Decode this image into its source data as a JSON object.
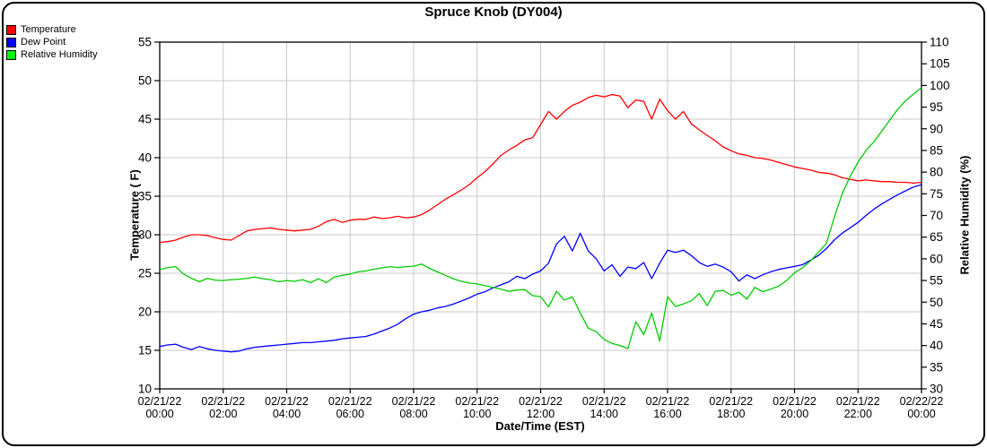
{
  "title": "Spruce Knob (DY004)",
  "legend": {
    "items": [
      {
        "label": "Temperature",
        "color": "#ff0000"
      },
      {
        "label": "Dew Point",
        "color": "#0000ff"
      },
      {
        "label": "Relative Humidity",
        "color": "#00ff00"
      }
    ]
  },
  "chart_data": {
    "type": "line",
    "title": "Spruce Knob (DY004)",
    "xlabel": "Date/Time (EST)",
    "ylabel_left": "Temperature ( F)",
    "ylabel_right": "Relative Humidity (%)",
    "x_total_hours": 24,
    "x_step_hours": 0.25,
    "x_tick_interval_hours": 2,
    "x_tick_labels": [
      [
        "02/21/22",
        "00:00"
      ],
      [
        "02/21/22",
        "02:00"
      ],
      [
        "02/21/22",
        "04:00"
      ],
      [
        "02/21/22",
        "06:00"
      ],
      [
        "02/21/22",
        "08:00"
      ],
      [
        "02/21/22",
        "10:00"
      ],
      [
        "02/21/22",
        "12:00"
      ],
      [
        "02/21/22",
        "14:00"
      ],
      [
        "02/21/22",
        "16:00"
      ],
      [
        "02/21/22",
        "18:00"
      ],
      [
        "02/21/22",
        "20:00"
      ],
      [
        "02/21/22",
        "22:00"
      ],
      [
        "02/22/22",
        "00:00"
      ]
    ],
    "y_left": {
      "min": 10,
      "max": 55,
      "tick_step": 5
    },
    "y_right": {
      "min": 30,
      "max": 110,
      "tick_step": 5
    },
    "grid": {
      "horizontal_follows": "left",
      "color": "#c8c8c8"
    },
    "series": [
      {
        "name": "Temperature",
        "axis": "left",
        "color": "#ff0000",
        "values": [
          29.0,
          29.1,
          29.3,
          29.7,
          30.0,
          30.0,
          29.9,
          29.6,
          29.4,
          29.3,
          29.9,
          30.5,
          30.7,
          30.8,
          30.9,
          30.7,
          30.6,
          30.5,
          30.6,
          30.7,
          31.1,
          31.7,
          32.0,
          31.6,
          31.9,
          32.0,
          32.0,
          32.3,
          32.1,
          32.2,
          32.4,
          32.2,
          32.3,
          32.6,
          33.2,
          33.9,
          34.6,
          35.2,
          35.8,
          36.5,
          37.4,
          38.2,
          39.2,
          40.3,
          41.0,
          41.6,
          42.3,
          42.6,
          44.3,
          46.0,
          45.0,
          46.0,
          46.8,
          47.2,
          47.8,
          48.1,
          47.9,
          48.2,
          48.0,
          46.5,
          47.5,
          47.3,
          45.0,
          47.6,
          46.1,
          45.0,
          46.0,
          44.4,
          43.6,
          42.9,
          42.2,
          41.4,
          40.9,
          40.5,
          40.3,
          40.0,
          39.9,
          39.7,
          39.4,
          39.1,
          38.8,
          38.6,
          38.4,
          38.1,
          38.0,
          37.8,
          37.4,
          37.2,
          37.0,
          37.1,
          37.0,
          36.9,
          36.9,
          36.8,
          36.8,
          36.7,
          36.8
        ]
      },
      {
        "name": "Dew Point",
        "axis": "left",
        "color": "#0000ff",
        "values": [
          15.5,
          15.7,
          15.8,
          15.4,
          15.1,
          15.5,
          15.2,
          15.0,
          14.9,
          14.8,
          14.9,
          15.2,
          15.4,
          15.5,
          15.6,
          15.7,
          15.8,
          15.9,
          16.0,
          16.0,
          16.1,
          16.2,
          16.3,
          16.5,
          16.6,
          16.7,
          16.8,
          17.1,
          17.5,
          17.9,
          18.4,
          19.1,
          19.7,
          20.0,
          20.2,
          20.5,
          20.7,
          21.0,
          21.4,
          21.8,
          22.3,
          22.6,
          23.1,
          23.5,
          23.9,
          24.6,
          24.3,
          24.9,
          25.3,
          26.3,
          28.8,
          29.8,
          27.9,
          30.2,
          27.9,
          26.9,
          25.3,
          26.1,
          24.6,
          25.8,
          25.6,
          26.4,
          24.3,
          26.3,
          28.0,
          27.7,
          28.0,
          27.3,
          26.4,
          25.9,
          26.2,
          25.8,
          25.2,
          24.0,
          24.8,
          24.3,
          24.8,
          25.2,
          25.5,
          25.7,
          25.9,
          26.1,
          26.7,
          27.3,
          28.2,
          29.3,
          30.2,
          30.9,
          31.6,
          32.5,
          33.3,
          34.0,
          34.6,
          35.2,
          35.7,
          36.2,
          36.5
        ]
      },
      {
        "name": "Relative Humidity",
        "axis": "right",
        "color": "#00cc00",
        "values": [
          57.5,
          58.0,
          58.2,
          56.5,
          55.5,
          54.7,
          55.5,
          55.1,
          55.0,
          55.2,
          55.3,
          55.5,
          55.8,
          55.4,
          55.2,
          54.7,
          55.0,
          54.8,
          55.2,
          54.5,
          55.4,
          54.5,
          55.8,
          56.2,
          56.5,
          57.0,
          57.2,
          57.6,
          57.9,
          58.2,
          58.0,
          58.2,
          58.3,
          58.8,
          57.8,
          57.0,
          56.2,
          55.4,
          54.8,
          54.4,
          54.2,
          53.8,
          53.4,
          53.0,
          52.5,
          52.8,
          52.9,
          51.5,
          51.3,
          48.9,
          52.5,
          50.5,
          51.2,
          47.5,
          44.0,
          43.2,
          41.4,
          40.5,
          40.0,
          39.3,
          45.5,
          42.5,
          47.5,
          41.0,
          51.3,
          49.0,
          49.6,
          50.3,
          52.0,
          49.2,
          52.5,
          52.7,
          51.6,
          52.3,
          50.7,
          53.4,
          52.4,
          53.0,
          53.7,
          55.0,
          56.8,
          57.9,
          59.5,
          61.5,
          63.5,
          69.5,
          75.0,
          79.0,
          82.3,
          85.0,
          87.0,
          89.5,
          92.0,
          94.5,
          96.5,
          98.0,
          99.5
        ]
      }
    ]
  }
}
